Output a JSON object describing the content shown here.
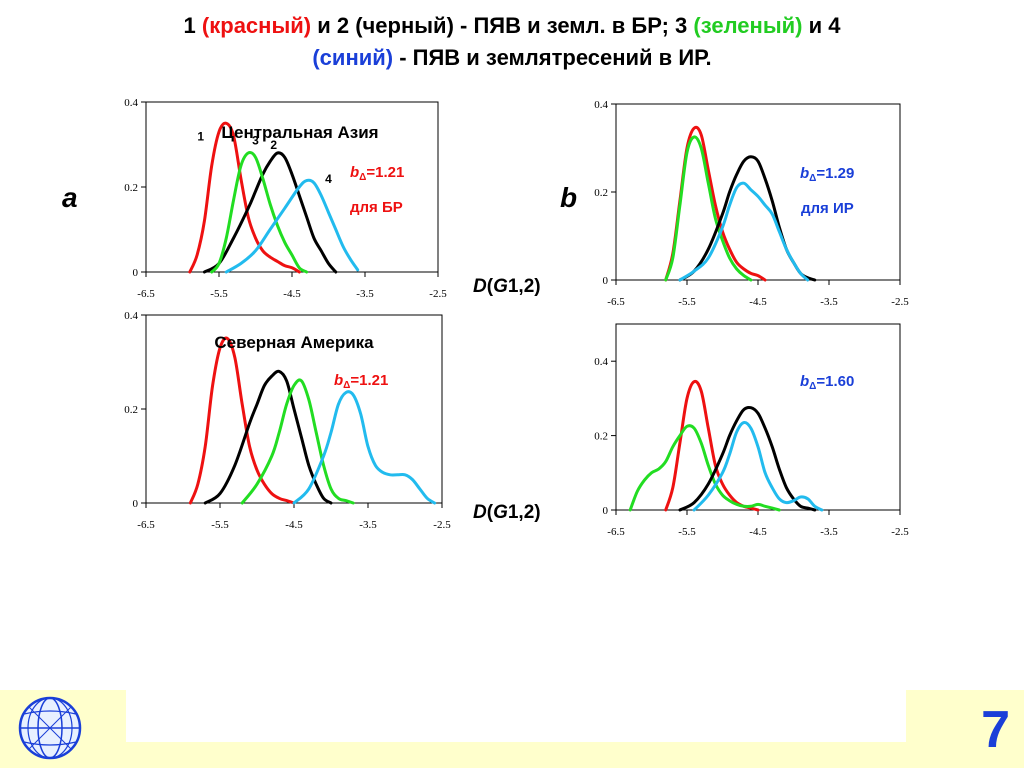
{
  "header": {
    "t1": "1",
    "t2": "(красный)",
    "t3": " и 2 (черный) - ПЯВ и земл. в БР; 3 ",
    "t4": "(зеленый)",
    "t5": " и 4",
    "t6": "(синий)",
    "t7": " - ПЯВ и землятресений в ИР."
  },
  "panels": {
    "a": "a",
    "b": "b"
  },
  "d_label_top": {
    "d": "D",
    "p1": "(",
    "g": "G",
    "rest": "1,2)"
  },
  "d_label_bottom": {
    "d": "D",
    "p1": "(",
    "g": "G",
    "rest": "1,2)"
  },
  "page_number": "7",
  "colors": {
    "red": "#ee1111",
    "black": "#000000",
    "green": "#22dd22",
    "blue": "#22bbee",
    "text_red": "#ee1111",
    "text_blue": "#1a3fd8"
  },
  "chart_data": [
    {
      "id": "a-top",
      "type": "line",
      "title": "Центральная Азия",
      "xlim": [
        -6.5,
        -2.5
      ],
      "ylim": [
        0,
        0.4
      ],
      "xticks": [
        "-6.5",
        "-5.5",
        "-4.5",
        "-3.5",
        "-2.5"
      ],
      "yticks": [
        "0",
        "0.2",
        "0.4"
      ],
      "annotations": {
        "b": "b",
        "sub": "Δ",
        "val": "=1.21",
        "line2": "для БР"
      },
      "curve_labels": [
        {
          "text": "1",
          "x": -5.75,
          "y": 0.31
        },
        {
          "text": "3",
          "x": -5.0,
          "y": 0.3
        },
        {
          "text": "2",
          "x": -4.75,
          "y": 0.29
        },
        {
          "text": "4",
          "x": -4.0,
          "y": 0.21
        }
      ],
      "series": [
        {
          "name": "1",
          "color": "red",
          "x": [
            -5.9,
            -5.8,
            -5.7,
            -5.6,
            -5.5,
            -5.4,
            -5.3,
            -5.2,
            -5.1,
            -5.0,
            -4.9,
            -4.8,
            -4.7,
            -4.6,
            -4.5,
            -4.4
          ],
          "y": [
            0.0,
            0.04,
            0.12,
            0.25,
            0.33,
            0.35,
            0.32,
            0.22,
            0.13,
            0.08,
            0.05,
            0.035,
            0.025,
            0.015,
            0.01,
            0.0
          ]
        },
        {
          "name": "2",
          "color": "black",
          "x": [
            -5.7,
            -5.5,
            -5.3,
            -5.1,
            -5.0,
            -4.9,
            -4.8,
            -4.7,
            -4.6,
            -4.5,
            -4.4,
            -4.3,
            -4.2,
            -4.1,
            -4.0,
            -3.9
          ],
          "y": [
            0.0,
            0.02,
            0.08,
            0.15,
            0.19,
            0.23,
            0.26,
            0.28,
            0.27,
            0.23,
            0.18,
            0.13,
            0.08,
            0.05,
            0.02,
            0.0
          ]
        },
        {
          "name": "3",
          "color": "green",
          "x": [
            -5.6,
            -5.5,
            -5.4,
            -5.3,
            -5.2,
            -5.1,
            -5.0,
            -4.9,
            -4.8,
            -4.7,
            -4.6,
            -4.5,
            -4.4,
            -4.3
          ],
          "y": [
            0.0,
            0.02,
            0.08,
            0.17,
            0.25,
            0.28,
            0.27,
            0.22,
            0.16,
            0.11,
            0.07,
            0.04,
            0.01,
            0.0
          ]
        },
        {
          "name": "4",
          "color": "blue",
          "x": [
            -5.4,
            -5.2,
            -5.0,
            -4.8,
            -4.6,
            -4.4,
            -4.3,
            -4.2,
            -4.1,
            -4.0,
            -3.9,
            -3.8,
            -3.7,
            -3.6
          ],
          "y": [
            0.0,
            0.02,
            0.05,
            0.1,
            0.15,
            0.2,
            0.215,
            0.21,
            0.18,
            0.14,
            0.1,
            0.06,
            0.03,
            0.005
          ]
        }
      ]
    },
    {
      "id": "a-bottom",
      "type": "line",
      "title": "Северная Америка",
      "xlim": [
        -6.5,
        -2.5
      ],
      "ylim": [
        0,
        0.4
      ],
      "xticks": [
        "-6.5",
        "-5.5",
        "-4.5",
        "-3.5",
        "-2.5"
      ],
      "yticks": [
        "0",
        "0.2",
        "0.4"
      ],
      "annotations": {
        "b": "b",
        "sub": "Δ",
        "val": "=1.21",
        "line2": ""
      },
      "curve_labels": [],
      "series": [
        {
          "name": "1",
          "color": "red",
          "x": [
            -5.9,
            -5.8,
            -5.7,
            -5.6,
            -5.5,
            -5.4,
            -5.3,
            -5.2,
            -5.1,
            -5.0,
            -4.9,
            -4.8,
            -4.7,
            -4.6,
            -4.5
          ],
          "y": [
            0.0,
            0.04,
            0.12,
            0.25,
            0.33,
            0.35,
            0.31,
            0.21,
            0.12,
            0.07,
            0.04,
            0.02,
            0.01,
            0.005,
            0.0
          ]
        },
        {
          "name": "2",
          "color": "black",
          "x": [
            -5.7,
            -5.5,
            -5.3,
            -5.1,
            -5.0,
            -4.9,
            -4.8,
            -4.7,
            -4.6,
            -4.5,
            -4.4,
            -4.3,
            -4.2,
            -4.1,
            -4.0
          ],
          "y": [
            0.0,
            0.02,
            0.08,
            0.17,
            0.21,
            0.25,
            0.27,
            0.28,
            0.26,
            0.2,
            0.14,
            0.08,
            0.04,
            0.01,
            0.0
          ]
        },
        {
          "name": "3",
          "color": "green",
          "x": [
            -5.2,
            -5.0,
            -4.8,
            -4.7,
            -4.6,
            -4.5,
            -4.4,
            -4.3,
            -4.2,
            -4.1,
            -4.0,
            -3.9,
            -3.8,
            -3.7
          ],
          "y": [
            0.0,
            0.04,
            0.1,
            0.15,
            0.21,
            0.25,
            0.26,
            0.22,
            0.15,
            0.08,
            0.03,
            0.01,
            0.005,
            0.0
          ]
        },
        {
          "name": "4",
          "color": "blue",
          "x": [
            -4.5,
            -4.3,
            -4.1,
            -4.0,
            -3.9,
            -3.8,
            -3.7,
            -3.6,
            -3.5,
            -3.4,
            -3.3,
            -3.2,
            -3.1,
            -3.0,
            -2.9,
            -2.8,
            -2.7,
            -2.6
          ],
          "y": [
            0.0,
            0.03,
            0.1,
            0.15,
            0.21,
            0.235,
            0.23,
            0.19,
            0.12,
            0.08,
            0.065,
            0.06,
            0.06,
            0.06,
            0.05,
            0.03,
            0.01,
            0.0
          ]
        }
      ]
    },
    {
      "id": "b-top",
      "type": "line",
      "title": "",
      "xlim": [
        -6.5,
        -2.5
      ],
      "ylim": [
        0,
        0.4
      ],
      "xticks": [
        "-6.5",
        "-5.5",
        "-4.5",
        "-3.5",
        "-2.5"
      ],
      "yticks": [
        "0",
        "0.2",
        "0.4"
      ],
      "annotations": {
        "b": "b",
        "sub": "Δ",
        "val": "=1.29",
        "line2": "для ИР"
      },
      "curve_labels": [],
      "series": [
        {
          "name": "1",
          "color": "red",
          "x": [
            -5.8,
            -5.7,
            -5.6,
            -5.5,
            -5.4,
            -5.3,
            -5.2,
            -5.1,
            -5.0,
            -4.9,
            -4.8,
            -4.7,
            -4.6,
            -4.5,
            -4.4
          ],
          "y": [
            0.0,
            0.06,
            0.18,
            0.3,
            0.345,
            0.33,
            0.25,
            0.17,
            0.11,
            0.07,
            0.04,
            0.025,
            0.015,
            0.01,
            0.0
          ]
        },
        {
          "name": "3",
          "color": "green",
          "x": [
            -5.8,
            -5.7,
            -5.6,
            -5.5,
            -5.4,
            -5.3,
            -5.2,
            -5.1,
            -5.0,
            -4.9,
            -4.8,
            -4.7,
            -4.6
          ],
          "y": [
            0.0,
            0.05,
            0.17,
            0.29,
            0.325,
            0.3,
            0.22,
            0.14,
            0.09,
            0.05,
            0.025,
            0.01,
            0.0
          ]
        },
        {
          "name": "2",
          "color": "black",
          "x": [
            -5.6,
            -5.4,
            -5.2,
            -5.0,
            -4.9,
            -4.8,
            -4.7,
            -4.6,
            -4.5,
            -4.4,
            -4.3,
            -4.2,
            -4.1,
            -4.0,
            -3.9,
            -3.8,
            -3.7
          ],
          "y": [
            0.0,
            0.02,
            0.07,
            0.15,
            0.2,
            0.24,
            0.27,
            0.28,
            0.27,
            0.23,
            0.18,
            0.12,
            0.07,
            0.04,
            0.015,
            0.005,
            0.0
          ]
        },
        {
          "name": "4",
          "color": "blue",
          "x": [
            -5.6,
            -5.4,
            -5.2,
            -5.0,
            -4.9,
            -4.8,
            -4.7,
            -4.6,
            -4.5,
            -4.4,
            -4.3,
            -4.2,
            -4.1,
            -4.0,
            -3.9,
            -3.8
          ],
          "y": [
            0.0,
            0.02,
            0.05,
            0.12,
            0.17,
            0.21,
            0.22,
            0.205,
            0.19,
            0.17,
            0.15,
            0.11,
            0.07,
            0.04,
            0.015,
            0.0
          ]
        }
      ]
    },
    {
      "id": "b-bottom",
      "type": "line",
      "title": "",
      "xlim": [
        -6.5,
        -2.5
      ],
      "ylim": [
        0,
        0.5
      ],
      "xticks": [
        "-6.5",
        "-5.5",
        "-4.5",
        "-3.5",
        "-2.5"
      ],
      "yticks": [
        "0",
        "0.2",
        "0.4"
      ],
      "annotations": {
        "b": "b",
        "sub": "Δ",
        "val": "=1.60",
        "line2": ""
      },
      "curve_labels": [],
      "series": [
        {
          "name": "1",
          "color": "red",
          "x": [
            -5.8,
            -5.7,
            -5.6,
            -5.5,
            -5.4,
            -5.3,
            -5.2,
            -5.1,
            -5.0,
            -4.9,
            -4.8,
            -4.7,
            -4.6,
            -4.5
          ],
          "y": [
            0.0,
            0.06,
            0.18,
            0.3,
            0.345,
            0.32,
            0.22,
            0.12,
            0.07,
            0.04,
            0.02,
            0.01,
            0.005,
            0.0
          ]
        },
        {
          "name": "3",
          "color": "green",
          "x": [
            -6.3,
            -6.2,
            -6.1,
            -6.0,
            -5.9,
            -5.8,
            -5.7,
            -5.6,
            -5.5,
            -5.4,
            -5.3,
            -5.2,
            -5.1,
            -5.0,
            -4.9,
            -4.8,
            -4.7,
            -4.6,
            -4.5,
            -4.4,
            -4.3,
            -4.2
          ],
          "y": [
            0.0,
            0.05,
            0.08,
            0.1,
            0.11,
            0.13,
            0.17,
            0.2,
            0.225,
            0.22,
            0.18,
            0.12,
            0.07,
            0.04,
            0.025,
            0.015,
            0.01,
            0.01,
            0.015,
            0.01,
            0.005,
            0.0
          ]
        },
        {
          "name": "2",
          "color": "black",
          "x": [
            -5.6,
            -5.4,
            -5.2,
            -5.0,
            -4.9,
            -4.8,
            -4.7,
            -4.6,
            -4.5,
            -4.4,
            -4.3,
            -4.2,
            -4.1,
            -4.0,
            -3.9,
            -3.8,
            -3.7
          ],
          "y": [
            0.0,
            0.02,
            0.07,
            0.15,
            0.2,
            0.24,
            0.27,
            0.275,
            0.26,
            0.22,
            0.17,
            0.11,
            0.06,
            0.03,
            0.01,
            0.005,
            0.0
          ]
        },
        {
          "name": "4",
          "color": "blue",
          "x": [
            -5.4,
            -5.2,
            -5.0,
            -4.9,
            -4.8,
            -4.7,
            -4.6,
            -4.5,
            -4.4,
            -4.3,
            -4.2,
            -4.1,
            -4.0,
            -3.9,
            -3.8,
            -3.7,
            -3.6
          ],
          "y": [
            0.0,
            0.04,
            0.1,
            0.15,
            0.21,
            0.235,
            0.22,
            0.17,
            0.1,
            0.06,
            0.03,
            0.02,
            0.025,
            0.035,
            0.03,
            0.01,
            0.0
          ]
        }
      ]
    }
  ]
}
